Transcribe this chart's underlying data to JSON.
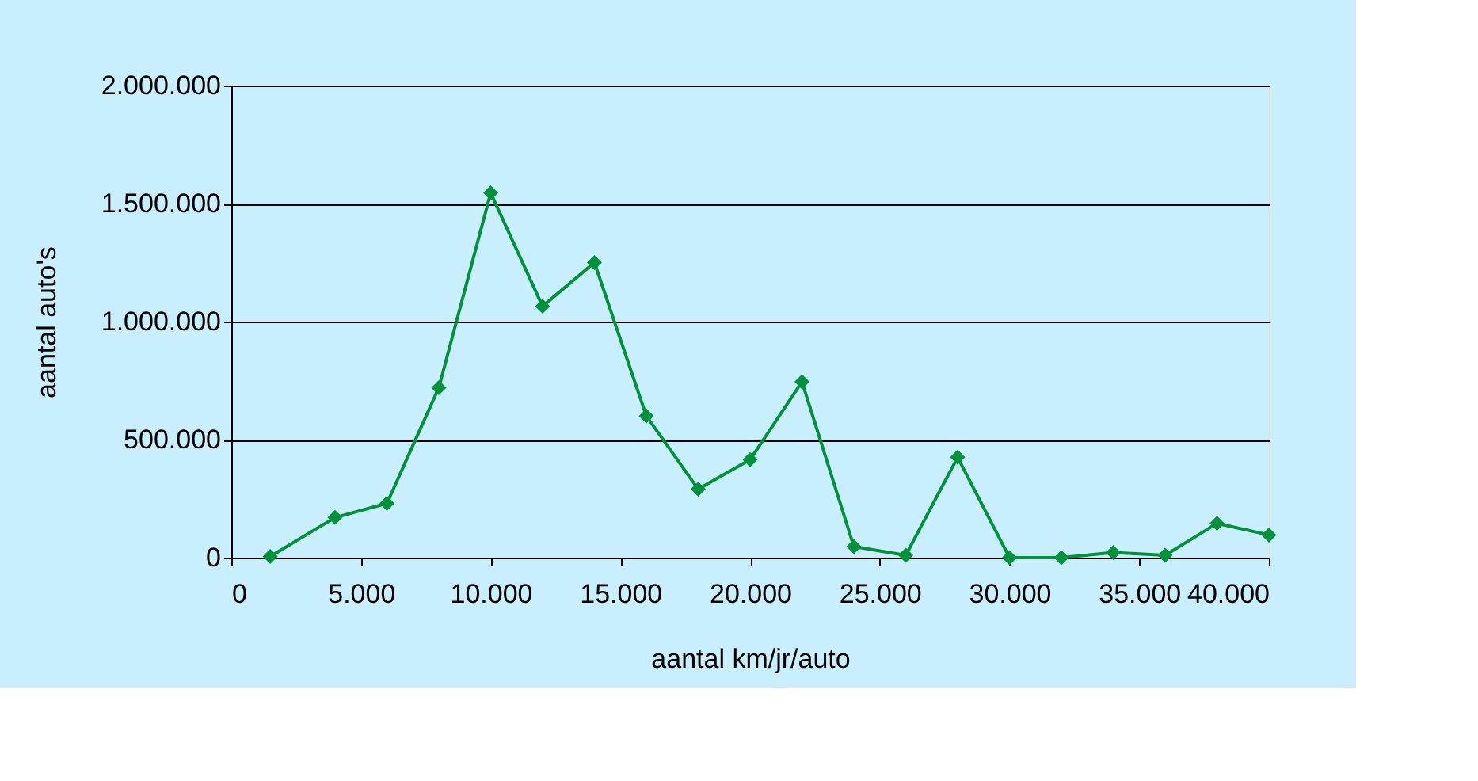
{
  "chart_data": {
    "type": "line",
    "xlabel": "aantal km/jr/auto",
    "ylabel": "aantal auto's",
    "x": [
      1500,
      4000,
      6000,
      8000,
      10000,
      12000,
      14000,
      16000,
      18000,
      20000,
      22000,
      24000,
      26000,
      28000,
      30000,
      32000,
      34000,
      36000,
      38000,
      40000
    ],
    "series": [
      {
        "color": "#00913a",
        "values": [
          5000,
          170000,
          230000,
          720000,
          1545000,
          1065000,
          1250000,
          600000,
          290000,
          415000,
          745000,
          47000,
          10000,
          425000,
          0,
          0,
          22000,
          10000,
          145000,
          96000
        ]
      }
    ],
    "xlim": [
      0,
      40000
    ],
    "xticks": [
      0,
      {
        "value": 5000,
        "label": "5.000"
      },
      {
        "value": 10000,
        "label": "10.000"
      },
      {
        "value": 15000,
        "label": "15.000"
      },
      {
        "value": 20000,
        "label": "20.000"
      },
      {
        "value": 25000,
        "label": "25.000"
      },
      {
        "value": 30000,
        "label": "30.000"
      },
      {
        "value": 35000,
        "label": "35.000"
      },
      {
        "value": 40000,
        "label": "40.000"
      }
    ],
    "ylim": [
      0,
      2000000
    ],
    "yticks": [
      0,
      {
        "value": 500000,
        "label": "500.000"
      },
      {
        "value": 1000000,
        "label": "1.000.000"
      },
      {
        "value": 1500000,
        "label": "1.500.000"
      },
      {
        "value": 2000000,
        "label": "2.000.000"
      }
    ],
    "grid": "y",
    "marker": "diamond",
    "line_style": "solid"
  }
}
